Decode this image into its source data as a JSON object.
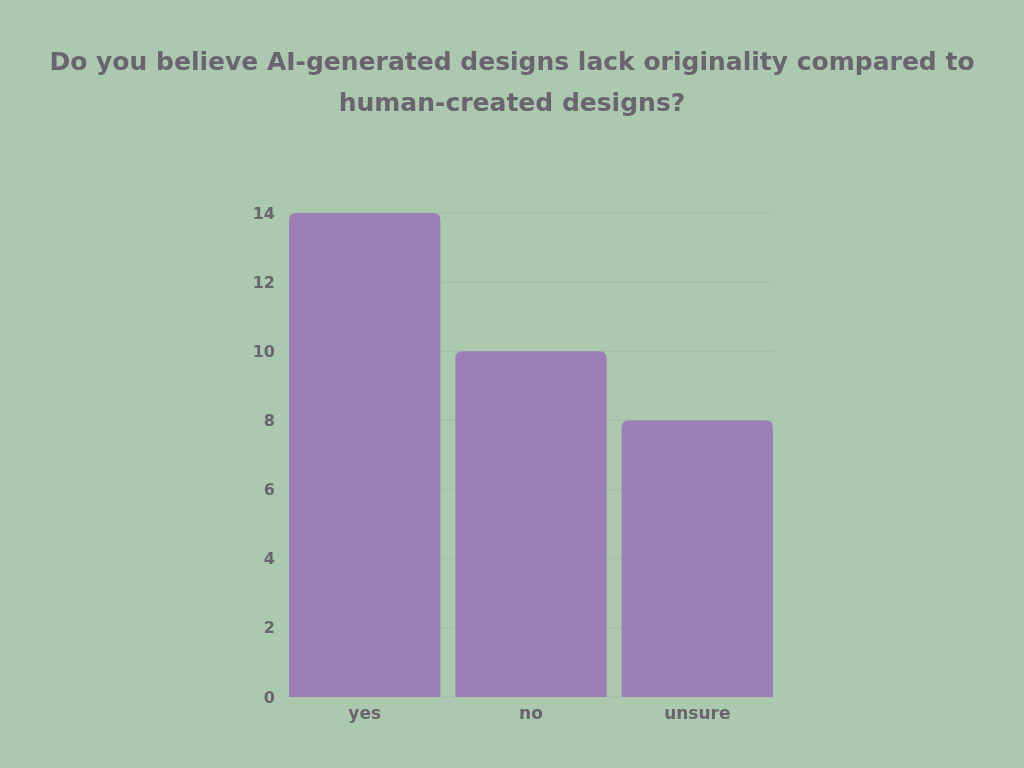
{
  "chart_data": {
    "type": "bar",
    "title": "Do you believe AI-generated designs lack originality compared to human-created designs?",
    "categories": [
      "yes",
      "no",
      "unsure"
    ],
    "values": [
      14,
      10,
      8
    ],
    "color": "#9d7fb8",
    "ylim": [
      0,
      14
    ],
    "yticks": [
      0,
      2,
      4,
      6,
      8,
      10,
      12,
      14
    ],
    "grid": "y"
  }
}
